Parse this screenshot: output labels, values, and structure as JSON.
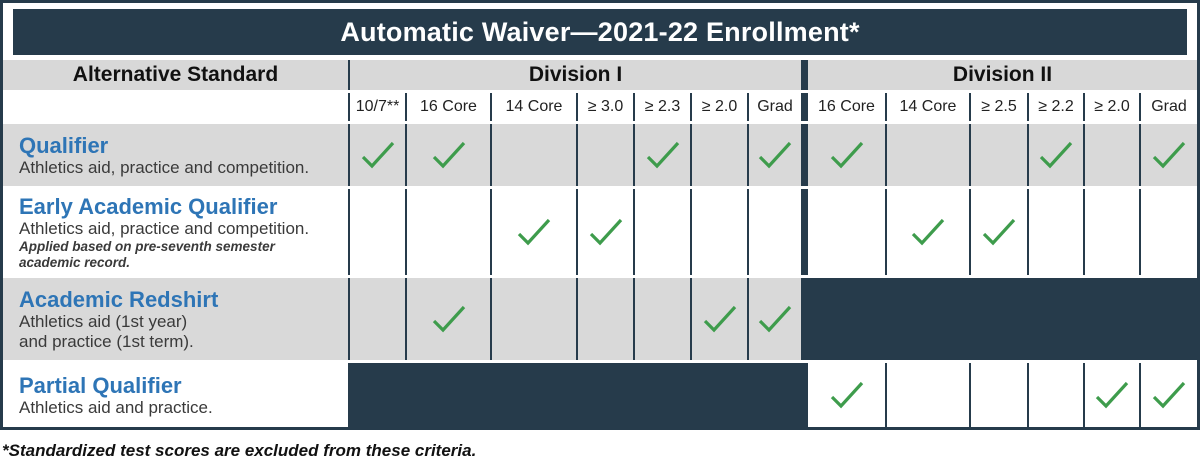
{
  "title": "Automatic Waiver—2021-22 Enrollment*",
  "footnote": "*Standardized test scores are excluded from these criteria.",
  "colors": {
    "navy": "#263B4B",
    "cell_gray": "#D9D9D9",
    "check_green": "#3E9C4C",
    "heading_blue": "#2E75B6"
  },
  "icons": {
    "check": "checkmark-icon"
  },
  "table": {
    "label_header": "Alternative Standard",
    "groups": [
      {
        "label": "Division I",
        "columns": [
          "10/7**",
          "16 Core",
          "14 Core",
          "≥ 3.0",
          "≥ 2.3",
          "≥ 2.0",
          "Grad"
        ]
      },
      {
        "label": "Division II",
        "columns": [
          "16 Core",
          "14 Core",
          "≥ 2.5",
          "≥ 2.2",
          "≥ 2.0",
          "Grad"
        ]
      }
    ],
    "rows": [
      {
        "name": "Qualifier",
        "desc": [
          "Athletics aid, practice and competition."
        ],
        "shade": "gray",
        "div1": [
          1,
          1,
          0,
          0,
          1,
          0,
          1
        ],
        "div2": [
          1,
          0,
          0,
          1,
          0,
          1
        ],
        "div1_blocked": false,
        "div2_blocked": false
      },
      {
        "name": "Early Academic Qualifier",
        "desc": [
          "Athletics aid, practice and competition."
        ],
        "note": "Applied based on pre-seventh semester academic record.",
        "shade": "white",
        "div1": [
          0,
          0,
          1,
          1,
          0,
          0,
          0
        ],
        "div2": [
          0,
          1,
          1,
          0,
          0,
          0
        ],
        "div1_blocked": false,
        "div2_blocked": false
      },
      {
        "name": "Academic Redshirt",
        "desc": [
          "Athletics aid (1st year)",
          "and practice (1st term)."
        ],
        "shade": "gray",
        "div1": [
          0,
          1,
          0,
          0,
          0,
          1,
          1
        ],
        "div2": [
          0,
          0,
          0,
          0,
          0,
          0
        ],
        "div1_blocked": false,
        "div2_blocked": true
      },
      {
        "name": "Partial Qualifier",
        "desc": [
          "Athletics aid and practice."
        ],
        "shade": "white",
        "div1": [
          0,
          0,
          0,
          0,
          0,
          0,
          0
        ],
        "div2": [
          1,
          0,
          0,
          0,
          1,
          1
        ],
        "div1_blocked": true,
        "div2_blocked": false
      }
    ]
  }
}
